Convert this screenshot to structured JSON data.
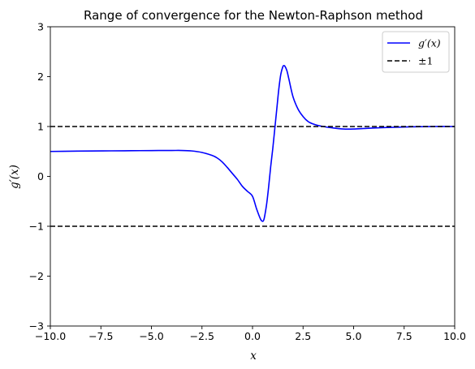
{
  "chart_data": {
    "type": "line",
    "title": "Range of convergence for the Newton-Raphson method",
    "xlabel": "x",
    "ylabel": "g′(x)",
    "xlim": [
      -10,
      10
    ],
    "ylim": [
      -3,
      3
    ],
    "xticks": [
      -10,
      -7.5,
      -5,
      -2.5,
      0,
      2.5,
      5,
      7.5,
      10
    ],
    "xtick_labels": [
      "−10.0",
      "−7.5",
      "−5.0",
      "−2.5",
      "0.0",
      "2.5",
      "5.0",
      "7.5",
      "10.0"
    ],
    "yticks": [
      -3,
      -2,
      -1,
      0,
      1,
      2,
      3
    ],
    "ytick_labels": [
      "−3",
      "−2",
      "−1",
      "0",
      "1",
      "2",
      "3"
    ],
    "legend_position": "top-right",
    "grid": false,
    "series": [
      {
        "name": "g′(x)",
        "style": "solid",
        "color": "#0000ff",
        "x": [
          -10,
          -9,
          -8,
          -7,
          -6,
          -5,
          -4,
          -3.5,
          -3,
          -2.5,
          -2,
          -1.75,
          -1.5,
          -1.25,
          -1,
          -0.75,
          -0.5,
          -0.25,
          0,
          0.2,
          0.4,
          0.5,
          0.55,
          0.6,
          0.7,
          0.8,
          0.9,
          1.0,
          1.1,
          1.2,
          1.3,
          1.4,
          1.5,
          1.55,
          1.6,
          1.7,
          1.8,
          2.0,
          2.25,
          2.5,
          2.75,
          3.0,
          3.25,
          3.5,
          4.0,
          4.5,
          5,
          5.5,
          6,
          7,
          8,
          9,
          10
        ],
        "y": [
          0.5,
          0.505,
          0.51,
          0.512,
          0.515,
          0.518,
          0.52,
          0.52,
          0.51,
          0.48,
          0.42,
          0.37,
          0.29,
          0.18,
          0.06,
          -0.06,
          -0.2,
          -0.3,
          -0.4,
          -0.65,
          -0.86,
          -0.9,
          -0.88,
          -0.8,
          -0.55,
          -0.2,
          0.2,
          0.55,
          0.95,
          1.35,
          1.75,
          2.05,
          2.2,
          2.22,
          2.21,
          2.12,
          1.95,
          1.6,
          1.35,
          1.2,
          1.1,
          1.05,
          1.02,
          1.0,
          0.97,
          0.95,
          0.95,
          0.96,
          0.97,
          0.985,
          0.995,
          1.0,
          1.0
        ]
      },
      {
        "name": "±1",
        "style": "dashed",
        "color": "#000000",
        "lines": [
          1,
          -1
        ]
      }
    ]
  }
}
